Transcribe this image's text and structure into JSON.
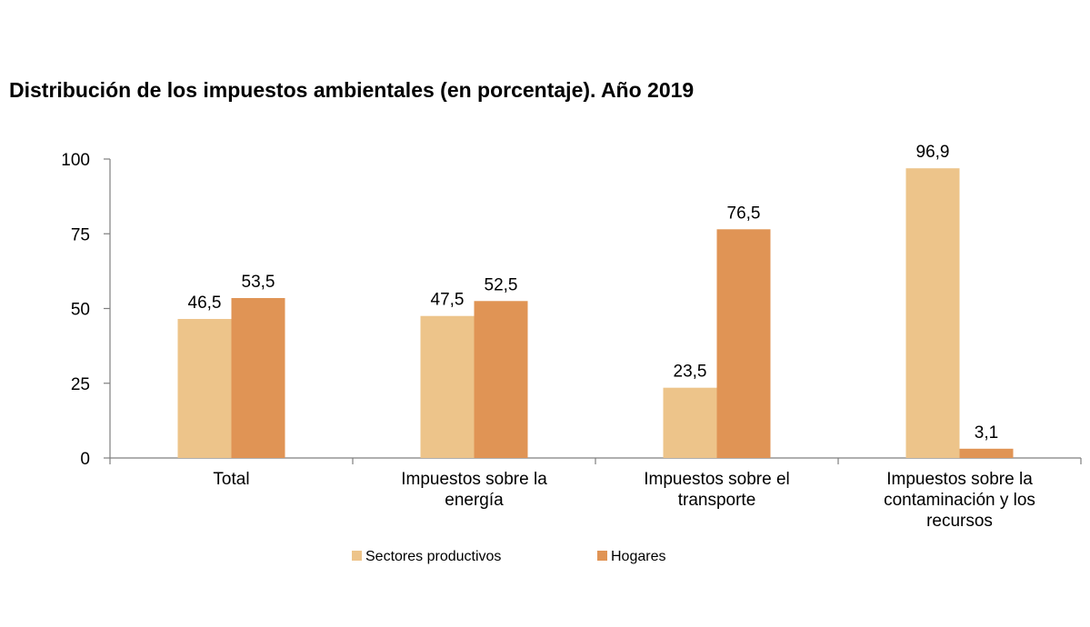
{
  "title": "Distribución de los impuestos ambientales (en porcentaje). Año 2019",
  "chart_data": {
    "type": "bar",
    "title": "Distribución de los impuestos ambientales (en porcentaje). Año 2019",
    "categories": [
      [
        "Total"
      ],
      [
        "Impuestos sobre la",
        "energía"
      ],
      [
        "Impuestos sobre el",
        "transporte"
      ],
      [
        "Impuestos sobre la",
        "contaminación y los",
        "recursos"
      ]
    ],
    "series": [
      {
        "name": "Sectores productivos",
        "color": "#EDC48A",
        "values": [
          46.5,
          47.5,
          23.5,
          96.9
        ],
        "labels": [
          "46,5",
          "47,5",
          "23,5",
          "96,9"
        ]
      },
      {
        "name": "Hogares",
        "color": "#E09455",
        "values": [
          53.5,
          52.5,
          76.5,
          3.1
        ],
        "labels": [
          "53,5",
          "52,5",
          "76,5",
          "3,1"
        ]
      }
    ],
    "yticks": [
      0,
      25,
      50,
      75,
      100
    ],
    "ylim": [
      0,
      100
    ],
    "xlabel": "",
    "ylabel": "",
    "legend_position": "bottom",
    "grid": false
  }
}
